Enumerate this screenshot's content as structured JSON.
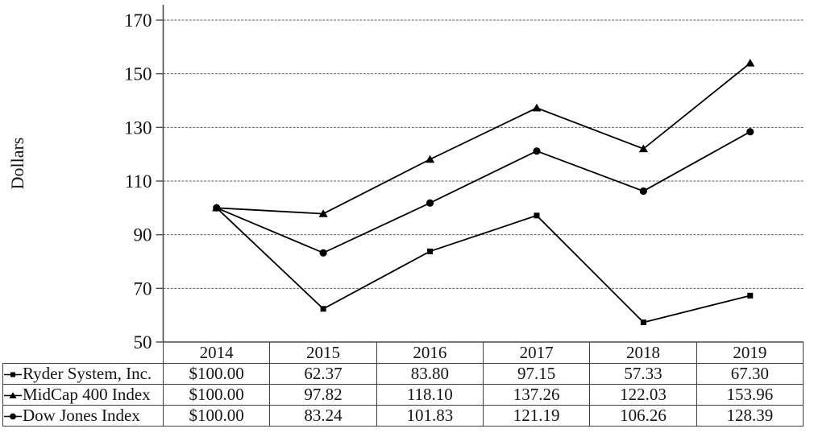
{
  "figure": {
    "ylabel": "Dollars"
  },
  "chart_data": {
    "type": "line",
    "title": "",
    "xlabel": "",
    "ylabel": "Dollars",
    "categories": [
      "2014",
      "2015",
      "2016",
      "2017",
      "2018",
      "2019"
    ],
    "series": [
      {
        "name": "Ryder System, Inc.",
        "marker": "square",
        "values": [
          100.0,
          62.37,
          83.8,
          97.15,
          57.33,
          67.3
        ]
      },
      {
        "name": "MidCap 400 Index",
        "marker": "triangle",
        "values": [
          100.0,
          97.82,
          118.1,
          137.26,
          122.03,
          153.96
        ]
      },
      {
        "name": "Dow Jones Index",
        "marker": "circle",
        "values": [
          100.0,
          83.24,
          101.83,
          121.19,
          106.26,
          128.39
        ]
      }
    ],
    "ylim": [
      50,
      170
    ],
    "yticks": [
      50,
      70,
      90,
      110,
      130,
      150,
      170
    ],
    "grid": true,
    "legend_position": "table-rows-left",
    "line_color": "#000000"
  },
  "table": {
    "header": [
      "2014",
      "2015",
      "2016",
      "2017",
      "2018",
      "2019"
    ],
    "rows": [
      {
        "label": "Ryder System, Inc.",
        "marker": "square",
        "cells": [
          "$100.00",
          "62.37",
          "83.80",
          "97.15",
          "57.33",
          "67.30"
        ]
      },
      {
        "label": "MidCap 400 Index",
        "marker": "triangle",
        "cells": [
          "$100.00",
          "97.82",
          "118.10",
          "137.26",
          "122.03",
          "153.96"
        ]
      },
      {
        "label": "Dow Jones Index",
        "marker": "circle",
        "cells": [
          "$100.00",
          "83.24",
          "101.83",
          "121.19",
          "106.26",
          "128.39"
        ]
      }
    ]
  }
}
